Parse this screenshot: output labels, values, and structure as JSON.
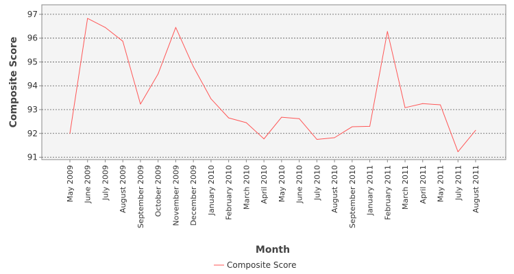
{
  "chart_data": {
    "type": "line",
    "xlabel": "Month",
    "ylabel": "Composite Score",
    "categories": [
      "May 2009",
      "June 2009",
      "July 2009",
      "August 2009",
      "September 2009",
      "October 2009",
      "November 2009",
      "December 2009",
      "January 2010",
      "February 2010",
      "March 2010",
      "April 2010",
      "May 2010",
      "June 2010",
      "July 2010",
      "August 2010",
      "September 2010",
      "January 2011",
      "February 2011",
      "March 2011",
      "April 2011",
      "May 2011",
      "July 2011",
      "August 2011"
    ],
    "series": [
      {
        "name": "Composite Score",
        "color": "#ff5555",
        "values": [
          92.0,
          96.83,
          96.45,
          95.87,
          93.23,
          94.5,
          96.45,
          94.8,
          93.45,
          92.65,
          92.45,
          91.77,
          92.68,
          92.62,
          91.75,
          91.82,
          92.28,
          92.3,
          96.28,
          93.08,
          93.25,
          93.2,
          91.23,
          92.13
        ]
      }
    ],
    "ylim": [
      90.9,
      97.4
    ],
    "yticks": [
      91,
      92,
      93,
      94,
      95,
      96,
      97
    ],
    "grid": true,
    "legend": "bottom-center",
    "plot_background": "#f4f4f4",
    "grid_color": "#555555"
  }
}
